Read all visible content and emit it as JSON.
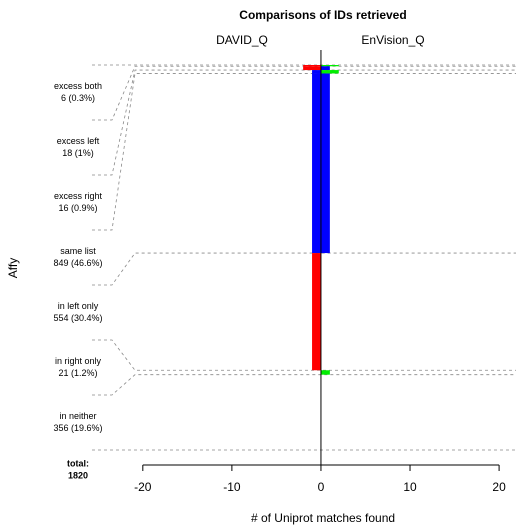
{
  "chart_data": {
    "type": "butterfly",
    "title": "Comparisons of IDs retrieved",
    "left_label": "DAVID_Q",
    "right_label": "EnVision_Q",
    "xlabel": "# of Uniprot matches found",
    "ylabel": "Affy",
    "categories": [
      "excess both",
      "excess left",
      "excess right",
      "same list",
      "in left only",
      "in right only",
      "in neither"
    ],
    "values": [
      6,
      18,
      16,
      849,
      554,
      21,
      356
    ],
    "value_labels": [
      "6 (0.3%)",
      "18 (1%)",
      "16 (0.9%)",
      "849 (46.6%)",
      "554 (30.4%)",
      "21 (1.2%)",
      "356 (19.6%)"
    ],
    "left": [
      2,
      2,
      1,
      1,
      1,
      0,
      0
    ],
    "right": [
      2,
      1,
      2,
      1,
      0,
      1,
      0
    ],
    "left_colors": [
      "#ff0000",
      "#ff0000",
      "#0000ff",
      "#0000ff",
      "#ff0000",
      "#ff0000",
      "#ff0000"
    ],
    "right_colors": [
      "#00ee00",
      "#0000ff",
      "#00ee00",
      "#0000ff",
      "#00ee00",
      "#00ee00",
      "#00ee00"
    ],
    "total_label": "total:",
    "total": 1820,
    "xlim": [
      -22,
      21
    ],
    "xticks": [
      -20,
      -10,
      0,
      10,
      20
    ]
  }
}
